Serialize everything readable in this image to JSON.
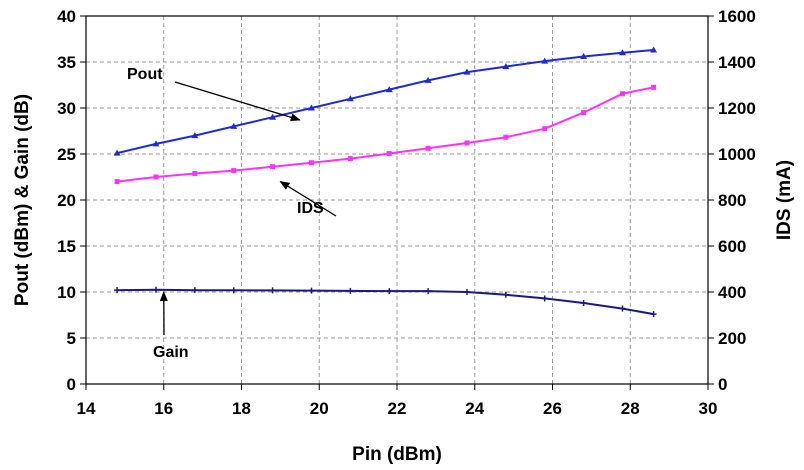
{
  "chart_data": {
    "type": "line",
    "title": "",
    "xlabel": "Pin (dBm)",
    "ylabel_left": "Pout (dBm) & Gain (dB)",
    "ylabel_right": "IDS (mA)",
    "xlim": [
      14,
      30
    ],
    "ylim_left": [
      0,
      40
    ],
    "ylim_right": [
      0,
      1600
    ],
    "x_ticks": [
      "14",
      "16",
      "18",
      "20",
      "22",
      "24",
      "26",
      "28",
      "30"
    ],
    "y_left_ticks": [
      "0",
      "5",
      "10",
      "15",
      "20",
      "25",
      "30",
      "35",
      "40"
    ],
    "y_right_ticks": [
      "0",
      "200",
      "400",
      "600",
      "800",
      "1000",
      "1200",
      "1400",
      "1600"
    ],
    "grid": true,
    "series": [
      {
        "name": "Pout",
        "axis": "left",
        "color": "#1f2bd0",
        "marker": "triangle",
        "x": [
          14.8,
          15.8,
          16.8,
          17.8,
          18.8,
          19.8,
          20.8,
          21.8,
          22.8,
          23.8,
          24.8,
          25.8,
          26.8,
          27.8,
          28.6
        ],
        "y": [
          25.1,
          26.1,
          27.0,
          28.0,
          29.0,
          30.0,
          31.0,
          32.0,
          33.0,
          33.9,
          34.5,
          35.1,
          35.6,
          36.0,
          36.3
        ]
      },
      {
        "name": "IDS",
        "axis": "right",
        "color": "#ff33ff",
        "marker": "square",
        "x": [
          14.8,
          15.8,
          16.8,
          17.8,
          18.8,
          19.8,
          20.8,
          21.8,
          22.8,
          23.8,
          24.8,
          25.8,
          26.8,
          27.8,
          28.6
        ],
        "y": [
          880,
          900,
          915,
          928,
          945,
          962,
          980,
          1002,
          1025,
          1048,
          1073,
          1110,
          1180,
          1262,
          1290
        ]
      },
      {
        "name": "Gain",
        "axis": "left",
        "color": "#1a1a80",
        "marker": "plus",
        "x": [
          14.8,
          15.8,
          16.8,
          17.8,
          18.8,
          19.8,
          20.8,
          21.8,
          22.8,
          23.8,
          24.8,
          25.8,
          26.8,
          27.8,
          28.6
        ],
        "y": [
          10.2,
          10.25,
          10.2,
          10.18,
          10.17,
          10.15,
          10.12,
          10.1,
          10.1,
          10.0,
          9.7,
          9.3,
          8.8,
          8.2,
          7.6
        ]
      }
    ],
    "annotations": [
      {
        "text": "Pout",
        "points_to": [
          19.5,
          28.7
        ]
      },
      {
        "text": "IDS",
        "points_to": [
          19.0,
          880
        ]
      },
      {
        "text": "Gain",
        "points_to": [
          16.0,
          10.0
        ]
      }
    ]
  }
}
